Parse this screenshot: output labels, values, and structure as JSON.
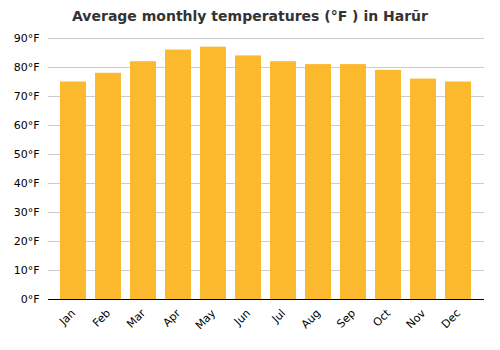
{
  "chart_data": {
    "type": "bar",
    "title": "Average monthly temperatures (°F ) in Harūr",
    "categories": [
      "Jan",
      "Feb",
      "Mar",
      "Apr",
      "May",
      "Jun",
      "Jul",
      "Aug",
      "Sep",
      "Oct",
      "Nov",
      "Dec"
    ],
    "values": [
      75,
      78,
      82,
      86,
      87,
      84,
      82,
      81,
      81,
      79,
      76,
      75
    ],
    "color": "#FDB92E",
    "ylim": [
      0,
      90
    ],
    "yticks": [
      {
        "value": 0,
        "label": "0°F"
      },
      {
        "value": 10,
        "label": "10°F"
      },
      {
        "value": 20,
        "label": "20°F"
      },
      {
        "value": 30,
        "label": "30°F"
      },
      {
        "value": 40,
        "label": "40°F"
      },
      {
        "value": 50,
        "label": "50°F"
      },
      {
        "value": 60,
        "label": "60°F"
      },
      {
        "value": 70,
        "label": "70°F"
      },
      {
        "value": 80,
        "label": "80°F"
      },
      {
        "value": 90,
        "label": "90°F"
      }
    ],
    "grid": true
  }
}
